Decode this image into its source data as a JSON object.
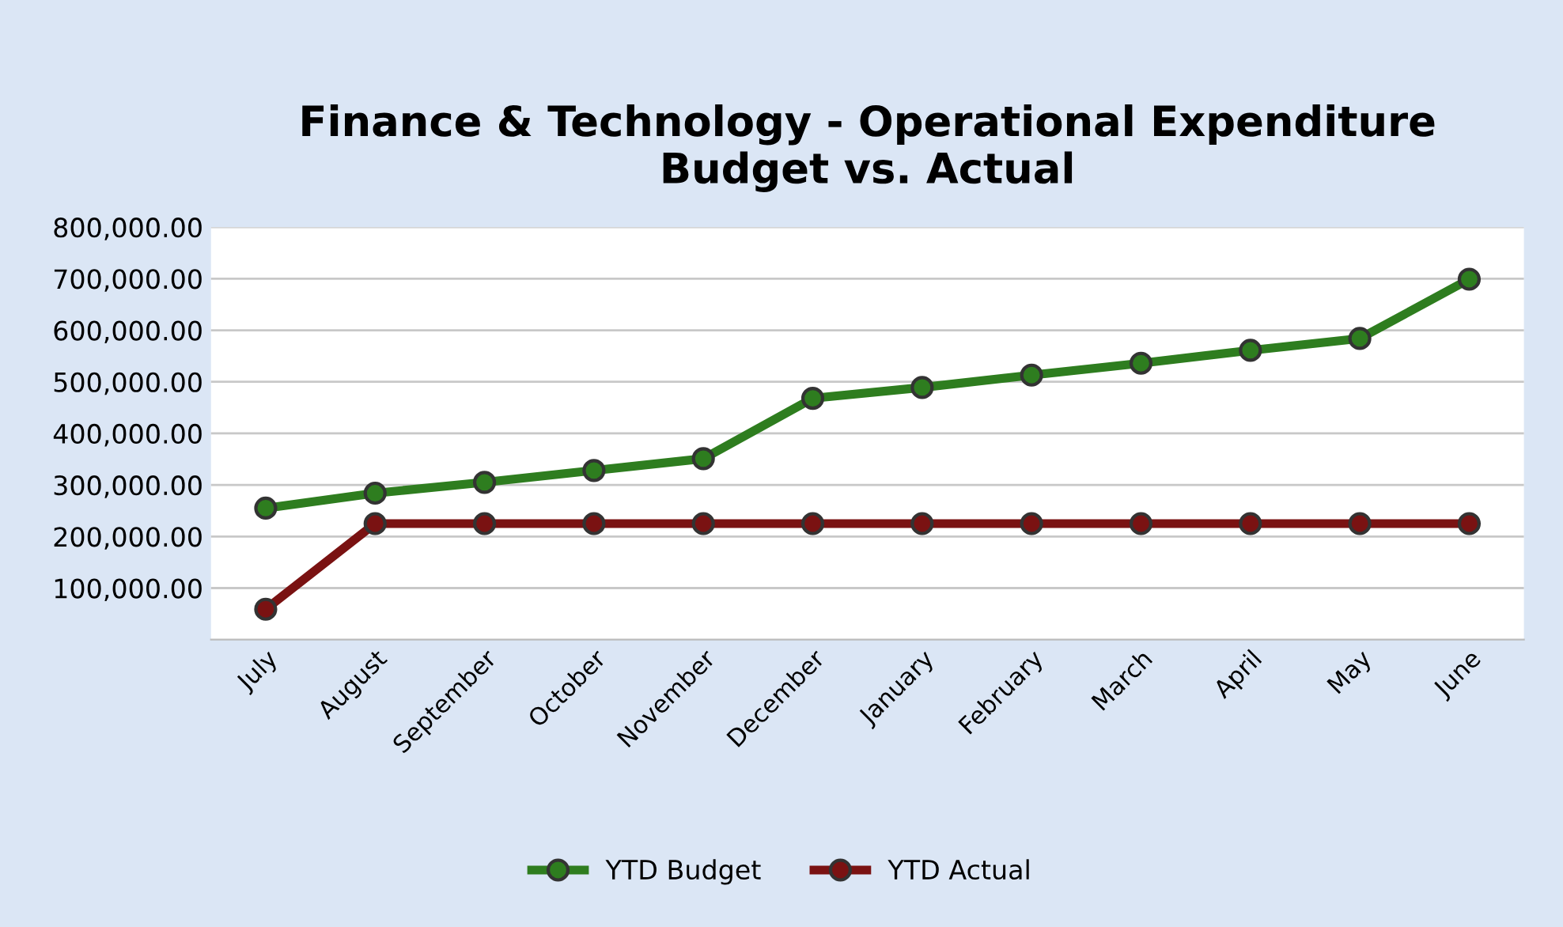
{
  "chart_data": {
    "type": "line",
    "title": "Finance & Technology - Operational Expenditure\nBudget vs. Actual",
    "categories": [
      "July",
      "August",
      "September",
      "October",
      "November",
      "December",
      "January",
      "February",
      "March",
      "April",
      "May",
      "June"
    ],
    "series": [
      {
        "name": "YTD Budget",
        "color": "#2e7d1f",
        "values": [
          255000,
          284000,
          305000,
          328000,
          351000,
          468000,
          489000,
          513000,
          536000,
          561000,
          584000,
          699000
        ]
      },
      {
        "name": "YTD Actual",
        "color": "#7a1212",
        "values": [
          59000,
          225000,
          225000,
          225000,
          225000,
          225000,
          225000,
          225000,
          225000,
          225000,
          225000,
          225000
        ]
      }
    ],
    "ylim": [
      0,
      800000
    ],
    "yticks": [
      {
        "value": 100000,
        "label": "100,000.00"
      },
      {
        "value": 200000,
        "label": "200,000.00"
      },
      {
        "value": 300000,
        "label": "300,000.00"
      },
      {
        "value": 400000,
        "label": "400,000.00"
      },
      {
        "value": 500000,
        "label": "500,000.00"
      },
      {
        "value": 600000,
        "label": "600,000.00"
      },
      {
        "value": 700000,
        "label": "700,000.00"
      },
      {
        "value": 800000,
        "label": "800,000.00"
      }
    ],
    "grid": "y",
    "legend": "bottom",
    "marker": "circle",
    "line_style": "solid"
  }
}
